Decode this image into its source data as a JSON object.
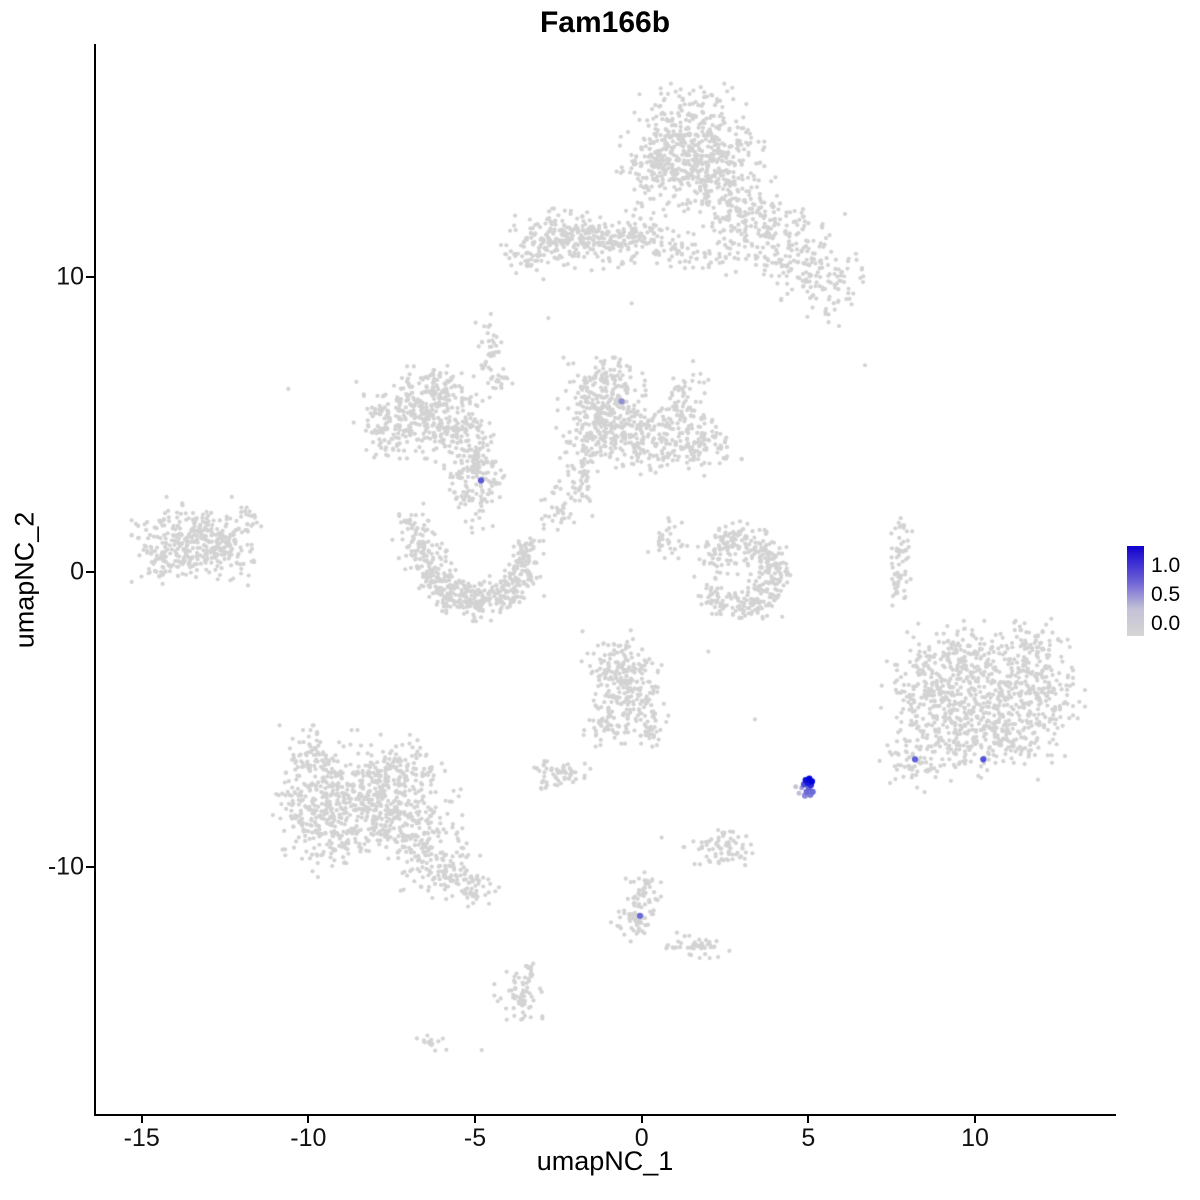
{
  "title": "Fam166b",
  "axes": {
    "x": {
      "label": "umapNC_1",
      "ticks": [
        "-15",
        "-10",
        "-5",
        "0",
        "5",
        "10"
      ],
      "tick_values": [
        -15,
        -10,
        -5,
        0,
        5,
        10
      ]
    },
    "y": {
      "label": "umapNC_2",
      "ticks": [
        "10",
        "0",
        "-10"
      ],
      "tick_values": [
        10,
        0,
        -10
      ]
    }
  },
  "legend": {
    "ticks": [
      "1.0",
      "0.5",
      "0.0"
    ],
    "gradient": [
      "#0f00cf",
      "#6f63d6",
      "#c3c1d6",
      "#d6d6d6"
    ]
  },
  "chart_data": {
    "type": "scatter",
    "title": "Fam166b",
    "xlabel": "umapNC_1",
    "ylabel": "umapNC_2",
    "xlim": [
      -16.4,
      14.2
    ],
    "ylim": [
      -18.4,
      17.85
    ],
    "x_ticks": [
      -15,
      -10,
      -5,
      0,
      5,
      10
    ],
    "y_ticks": [
      10,
      0,
      -10
    ],
    "grid": false,
    "legend_position": "right",
    "expression_scale": {
      "min": 0.0,
      "max": 1.0,
      "color_low": "#d3d3d3",
      "color_high": "#0000dc"
    },
    "background_point_color": "#d3d3d3",
    "background_clusters_format": "[center_x, center_y, sd_x, sd_y, n_points]",
    "background_clusters": [
      [
        1.4,
        14.5,
        0.95,
        0.85,
        420
      ],
      [
        2.2,
        13.3,
        0.6,
        0.6,
        140
      ],
      [
        0.4,
        13.6,
        0.45,
        0.6,
        90
      ],
      [
        3.2,
        12.2,
        0.7,
        0.55,
        110
      ],
      [
        4.3,
        11.2,
        0.75,
        0.6,
        110
      ],
      [
        4.9,
        10.1,
        0.5,
        0.5,
        60
      ],
      [
        3.0,
        10.9,
        0.8,
        0.5,
        40
      ],
      [
        -2.9,
        11.2,
        0.55,
        0.45,
        90
      ],
      [
        -2.0,
        11.35,
        0.6,
        0.4,
        110
      ],
      [
        -1.0,
        11.15,
        0.55,
        0.4,
        90
      ],
      [
        -0.1,
        11.4,
        0.45,
        0.35,
        60
      ],
      [
        0.8,
        11.05,
        0.35,
        0.3,
        35
      ],
      [
        1.8,
        10.9,
        0.6,
        0.35,
        25
      ],
      [
        -3.6,
        10.6,
        0.3,
        0.3,
        30
      ],
      [
        5.6,
        9.4,
        0.35,
        0.45,
        35
      ],
      [
        6.1,
        10.3,
        0.3,
        0.3,
        20
      ],
      [
        -1.2,
        5.7,
        0.55,
        0.65,
        220
      ],
      [
        -0.4,
        4.7,
        0.55,
        0.5,
        120
      ],
      [
        0.7,
        4.4,
        0.7,
        0.5,
        130
      ],
      [
        1.8,
        4.35,
        0.5,
        0.4,
        70
      ],
      [
        -1.7,
        4.2,
        0.4,
        0.4,
        60
      ],
      [
        -0.9,
        6.6,
        0.3,
        0.35,
        40
      ],
      [
        1.0,
        5.4,
        0.4,
        0.4,
        40
      ],
      [
        -1.9,
        2.9,
        0.3,
        0.45,
        40
      ],
      [
        -2.6,
        1.9,
        0.25,
        0.4,
        30
      ],
      [
        0.7,
        1.1,
        0.35,
        0.3,
        30
      ],
      [
        1.4,
        6.3,
        0.25,
        0.35,
        25
      ],
      [
        -6.6,
        5.4,
        0.85,
        0.65,
        280
      ],
      [
        -5.5,
        4.7,
        0.5,
        0.5,
        90
      ],
      [
        -7.6,
        4.9,
        0.45,
        0.45,
        60
      ],
      [
        -6.0,
        6.3,
        0.4,
        0.35,
        50
      ],
      [
        -4.9,
        4.0,
        0.3,
        0.4,
        40
      ],
      [
        -4.55,
        7.5,
        0.18,
        0.55,
        35
      ],
      [
        -4.3,
        6.5,
        0.2,
        0.3,
        20
      ],
      [
        -5.1,
        3.5,
        0.35,
        0.3,
        50
      ],
      [
        -5.4,
        2.8,
        0.25,
        0.35,
        30
      ],
      [
        -4.6,
        3.0,
        0.2,
        0.3,
        25
      ],
      [
        -5.0,
        2.2,
        0.3,
        0.4,
        25
      ],
      [
        -13.5,
        1.1,
        0.75,
        0.6,
        260
      ],
      [
        -12.4,
        0.5,
        0.45,
        0.4,
        70
      ],
      [
        -14.2,
        0.3,
        0.35,
        0.35,
        50
      ],
      [
        -12.0,
        1.9,
        0.3,
        0.3,
        25
      ],
      [
        -6.9,
        1.6,
        0.25,
        0.3,
        30
      ],
      [
        -6.6,
        0.9,
        0.3,
        0.35,
        60
      ],
      [
        -6.3,
        0.0,
        0.3,
        0.3,
        70
      ],
      [
        -5.7,
        -0.7,
        0.35,
        0.3,
        80
      ],
      [
        -4.9,
        -1.0,
        0.4,
        0.28,
        90
      ],
      [
        -4.1,
        -0.75,
        0.3,
        0.28,
        70
      ],
      [
        -3.6,
        -0.1,
        0.28,
        0.3,
        60
      ],
      [
        -3.5,
        0.7,
        0.25,
        0.3,
        45
      ],
      [
        2.3,
        0.6,
        0.3,
        0.35,
        50
      ],
      [
        2.9,
        1.0,
        0.35,
        0.3,
        60
      ],
      [
        3.6,
        0.7,
        0.3,
        0.3,
        55
      ],
      [
        3.95,
        0.0,
        0.28,
        0.35,
        60
      ],
      [
        3.6,
        -0.8,
        0.3,
        0.3,
        55
      ],
      [
        2.9,
        -1.15,
        0.35,
        0.25,
        50
      ],
      [
        2.2,
        -0.9,
        0.25,
        0.25,
        30
      ],
      [
        7.8,
        0.6,
        0.14,
        0.7,
        45
      ],
      [
        7.65,
        -0.6,
        0.12,
        0.3,
        15
      ],
      [
        -0.6,
        -3.3,
        0.5,
        0.55,
        140
      ],
      [
        -0.3,
        -4.5,
        0.5,
        0.55,
        120
      ],
      [
        -1.1,
        -5.2,
        0.3,
        0.3,
        40
      ],
      [
        0.3,
        -5.5,
        0.2,
        0.25,
        20
      ],
      [
        -2.5,
        -6.9,
        0.4,
        0.3,
        60
      ],
      [
        -8.6,
        -7.4,
        0.95,
        0.85,
        330
      ],
      [
        -7.3,
        -8.4,
        0.8,
        0.75,
        240
      ],
      [
        -9.4,
        -8.9,
        0.6,
        0.6,
        120
      ],
      [
        -6.4,
        -9.6,
        0.5,
        0.5,
        90
      ],
      [
        -5.7,
        -10.3,
        0.4,
        0.35,
        60
      ],
      [
        -9.9,
        -6.4,
        0.45,
        0.5,
        60
      ],
      [
        -7.1,
        -6.6,
        0.5,
        0.45,
        80
      ],
      [
        -5.0,
        -10.8,
        0.3,
        0.25,
        35
      ],
      [
        -10.3,
        -7.9,
        0.4,
        0.5,
        50
      ],
      [
        10.3,
        -3.7,
        1.1,
        0.85,
        380
      ],
      [
        9.1,
        -5.4,
        0.8,
        0.7,
        200
      ],
      [
        10.9,
        -5.6,
        0.75,
        0.6,
        150
      ],
      [
        12.1,
        -4.4,
        0.5,
        0.6,
        90
      ],
      [
        8.4,
        -4.0,
        0.5,
        0.5,
        70
      ],
      [
        8.1,
        -6.5,
        0.4,
        0.4,
        45
      ],
      [
        11.9,
        -2.5,
        0.5,
        0.4,
        60
      ],
      [
        9.5,
        -2.6,
        0.5,
        0.4,
        60
      ],
      [
        2.4,
        -9.3,
        0.5,
        0.3,
        70
      ],
      [
        0.05,
        -10.9,
        0.22,
        0.4,
        45
      ],
      [
        -0.2,
        -11.8,
        0.3,
        0.3,
        55
      ],
      [
        1.7,
        -12.6,
        0.5,
        0.22,
        45
      ],
      [
        -3.7,
        -14.3,
        0.3,
        0.4,
        55
      ],
      [
        -3.4,
        -13.5,
        0.15,
        0.25,
        15
      ],
      [
        -6.3,
        -15.9,
        0.22,
        0.18,
        14
      ]
    ],
    "outlier_points": [
      [
        -10.6,
        6.2
      ],
      [
        6.7,
        7.0
      ],
      [
        -2.8,
        8.6
      ],
      [
        -0.3,
        9.1
      ],
      [
        -4.8,
        -16.2
      ],
      [
        3.4,
        -5.0
      ],
      [
        0.6,
        -9.0
      ],
      [
        2.0,
        -2.7
      ]
    ],
    "expressing_points_format": "[x, y, expression_value]",
    "expressing_points": [
      [
        4.92,
        -7.05,
        0.95
      ],
      [
        5.03,
        -7.0,
        1.0
      ],
      [
        5.11,
        -7.1,
        1.0
      ],
      [
        4.98,
        -7.15,
        0.88
      ],
      [
        5.08,
        -7.22,
        0.8
      ],
      [
        4.87,
        -7.2,
        0.65
      ],
      [
        5.02,
        -7.32,
        0.55
      ],
      [
        4.95,
        -7.45,
        0.5
      ],
      [
        5.06,
        -7.55,
        0.42
      ],
      [
        4.9,
        -7.58,
        0.35
      ],
      [
        5.13,
        -7.45,
        0.5
      ],
      [
        4.8,
        -7.32,
        0.25
      ],
      [
        4.62,
        -7.28,
        0.08
      ],
      [
        4.72,
        -7.5,
        0.1
      ],
      [
        8.2,
        -6.35,
        0.55
      ],
      [
        10.25,
        -6.35,
        0.62
      ],
      [
        -0.05,
        -11.65,
        0.5
      ],
      [
        -4.82,
        3.1,
        0.58
      ],
      [
        -0.6,
        5.78,
        0.32
      ]
    ]
  }
}
